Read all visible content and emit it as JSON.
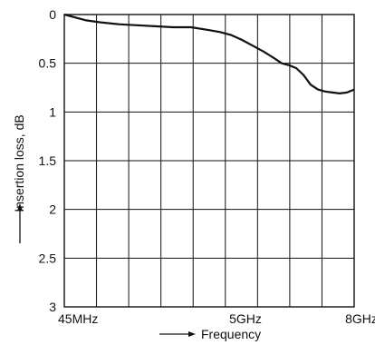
{
  "chart_data": {
    "type": "line",
    "title": "",
    "xlabel": "Frequency",
    "ylabel": "Insertion loss, dB",
    "x_tick_labels": [
      {
        "label": "45MHz",
        "pos": 0
      },
      {
        "label": "5GHz",
        "pos": 5
      },
      {
        "label": "8GHz",
        "pos": 8
      }
    ],
    "y_ticks": [
      0,
      0.5,
      1,
      1.5,
      2,
      2.5,
      3
    ],
    "y_tick_labels": [
      "0",
      "0.5",
      "1",
      "1.5",
      "2",
      "2.5",
      "3"
    ],
    "xlim": [
      0,
      8
    ],
    "ylim": [
      0,
      3
    ],
    "y_inverted": true,
    "grid": true,
    "colors": {
      "line": "#111111",
      "grid": "#111111"
    },
    "series": [
      {
        "x": [
          0,
          0.3,
          0.6,
          1.0,
          1.5,
          2.0,
          2.5,
          3.0,
          3.5,
          4.0,
          4.3,
          4.6,
          4.9,
          5.2,
          5.5,
          5.8,
          6.0,
          6.2,
          6.4,
          6.6,
          6.8,
          7.0,
          7.2,
          7.4,
          7.6,
          7.8,
          8.0
        ],
        "y": [
          0,
          0.03,
          0.06,
          0.08,
          0.1,
          0.11,
          0.12,
          0.13,
          0.13,
          0.16,
          0.18,
          0.21,
          0.26,
          0.32,
          0.38,
          0.45,
          0.5,
          0.52,
          0.55,
          0.62,
          0.72,
          0.77,
          0.79,
          0.8,
          0.81,
          0.8,
          0.77
        ]
      }
    ]
  }
}
